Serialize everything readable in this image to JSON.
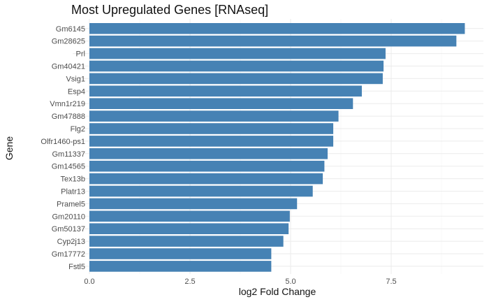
{
  "chart_data": {
    "type": "bar",
    "orientation": "horizontal",
    "title": "Most Upregulated Genes [RNAseq]",
    "xlabel": "log2 Fold Change",
    "ylabel": "Gene",
    "xlim": [
      0,
      9.6
    ],
    "x_ticks": [
      0,
      2.5,
      5,
      7.5
    ],
    "x_tick_labels": [
      "0.0",
      "2.5",
      "5.0",
      "7.5"
    ],
    "grid": true,
    "bar_color": "#4682b4",
    "categories": [
      "Gm6145",
      "Gm28625",
      "Prl",
      "Gm40421",
      "Vsig1",
      "Esp4",
      "Vmn1r219",
      "Gm47888",
      "Flg2",
      "Olfr1460-ps1",
      "Gm11337",
      "Gm14565",
      "Tex13b",
      "Platr13",
      "Pramel5",
      "Gm20110",
      "Gm50137",
      "Cyp2j13",
      "Gm17772",
      "Fstl5"
    ],
    "values": [
      9.33,
      9.12,
      7.36,
      7.31,
      7.29,
      6.77,
      6.55,
      6.19,
      6.06,
      6.06,
      5.92,
      5.84,
      5.8,
      5.55,
      5.16,
      4.98,
      4.95,
      4.82,
      4.52,
      4.52
    ]
  }
}
